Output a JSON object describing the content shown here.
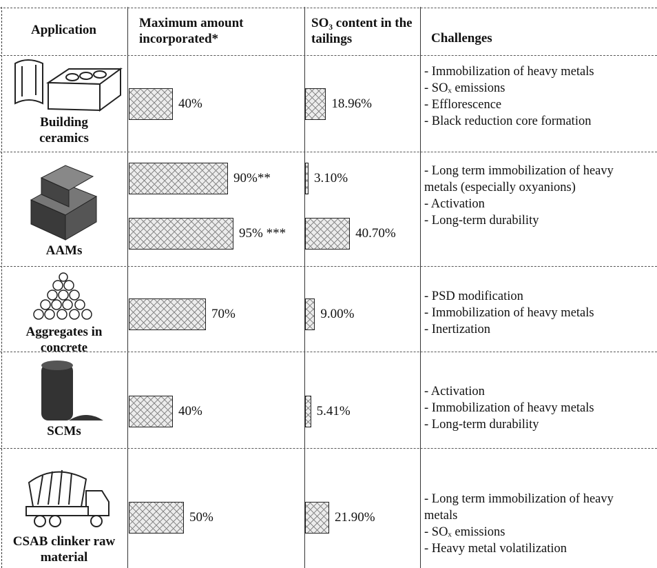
{
  "table": {
    "headers": [
      "Application",
      "Maximum amount incorporated*",
      "SO₃ content in the tailings",
      "Challenges"
    ],
    "rows": [
      {
        "application": "Building ceramics",
        "max_amount": {
          "values": [
            40
          ],
          "value_labels": [
            "40%"
          ]
        },
        "so3": {
          "values": [
            18.96
          ],
          "value_labels": [
            "18.96%"
          ]
        },
        "challenges": [
          "- Immobilization of heavy metals",
          "- SOₓ emissions",
          "- Efflorescence",
          "- Black reduction core formation"
        ]
      },
      {
        "application": "AAMs",
        "max_amount": {
          "values": [
            90,
            95
          ],
          "value_labels": [
            "90%**",
            "95% ***"
          ]
        },
        "so3": {
          "values": [
            3.1,
            40.7
          ],
          "value_labels": [
            "3.10%",
            "40.70%"
          ]
        },
        "challenges": [
          "- Long term immobilization of heavy metals (especially oxyanions)",
          "- Activation",
          "- Long-term durability"
        ]
      },
      {
        "application": "Aggregates in concrete",
        "max_amount": {
          "values": [
            70
          ],
          "value_labels": [
            "70%"
          ]
        },
        "so3": {
          "values": [
            9.0
          ],
          "value_labels": [
            "9.00%"
          ]
        },
        "challenges": [
          "- PSD modification",
          "- Immobilization of heavy metals",
          "- Inertization"
        ]
      },
      {
        "application": "SCMs",
        "max_amount": {
          "values": [
            40
          ],
          "value_labels": [
            "40%"
          ]
        },
        "so3": {
          "values": [
            5.41
          ],
          "value_labels": [
            "5.41%"
          ]
        },
        "challenges": [
          "- Activation",
          "- Immobilization of heavy metals",
          "- Long-term durability"
        ]
      },
      {
        "application": "CSAB clinker raw material",
        "max_amount": {
          "values": [
            50
          ],
          "value_labels": [
            "50%"
          ]
        },
        "so3": {
          "values": [
            21.9
          ],
          "value_labels": [
            "21.90%"
          ]
        },
        "challenges": [
          "- Long term immobilization of heavy metals",
          "- SOₓ emissions",
          "- Heavy metal volatilization"
        ]
      }
    ]
  }
}
